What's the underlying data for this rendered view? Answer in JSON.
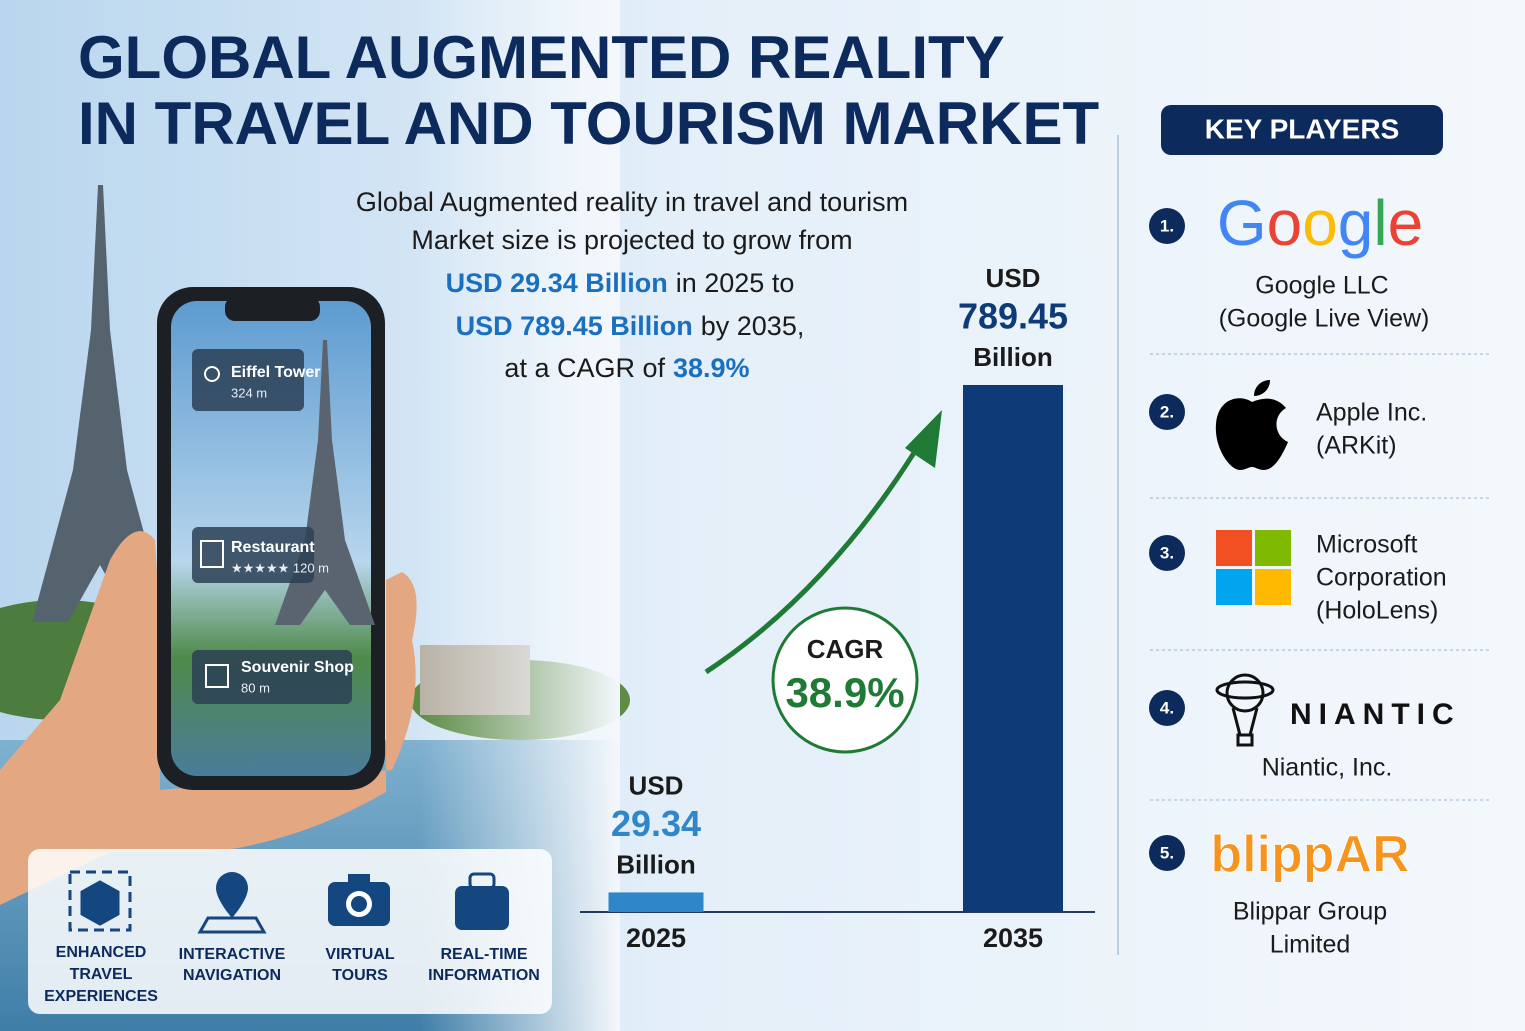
{
  "title": [
    "GLOBAL AUGMENTED REALITY",
    "IN TRAVEL AND TOURISM MARKET"
  ],
  "summary": {
    "lines": [
      "Global Augmented reality in travel and tourism",
      "Market size is projected to grow from"
    ],
    "start": {
      "amount": "USD 29.34 Billion",
      "rest": "in 2025 to"
    },
    "end": {
      "amount": "USD 789.45 Billion",
      "rest": "by 2035,"
    },
    "cagr": {
      "lead": "at a CAGR of",
      "amount": "38.9%"
    }
  },
  "phone_tags": [
    {
      "name": "Eiffel Tower",
      "detail": "324 m"
    },
    {
      "name": "Restaurant",
      "detail": "★★★★★ 120 m"
    },
    {
      "name": "Souvenir Shop",
      "detail": "80 m"
    }
  ],
  "features": [
    [
      "ENHANCED",
      "TRAVEL",
      "EXPERIENCES"
    ],
    [
      "INTERACTIVE",
      "NAVIGATION"
    ],
    [
      "VIRTUAL",
      "TOURS"
    ],
    [
      "REAL-TIME",
      "INFORMATION"
    ]
  ],
  "chart_data": {
    "type": "bar",
    "categories": [
      "2025",
      "2035"
    ],
    "values": [
      29.34,
      789.45
    ],
    "colors": [
      "#2f86c8",
      "#0f3a78"
    ],
    "value_prefix": "USD",
    "value_suffix": "Billion",
    "cagr_label": "CAGR",
    "cagr_value": "38.9%"
  },
  "key_players": {
    "header": "KEY PLAYERS",
    "items": [
      {
        "number": "1.",
        "logo_text": "Google",
        "logo_colors": [
          "#4285f4",
          "#ea4335",
          "#fbbc05",
          "#4285f4",
          "#34a853",
          "#ea4335"
        ],
        "name": [
          "Google LLC",
          "(Google Live View)"
        ]
      },
      {
        "number": "2.",
        "name": [
          "Apple Inc.",
          "(ARKit)"
        ]
      },
      {
        "number": "3.",
        "name": [
          "Microsoft",
          "Corporation",
          "(HoloLens)"
        ]
      },
      {
        "number": "4.",
        "logo_text": "NIANTIC",
        "name": [
          "Niantic, Inc."
        ]
      },
      {
        "number": "5.",
        "logo_text": "blippAR",
        "name": [
          "Blippar Group",
          "Limited"
        ]
      }
    ]
  }
}
